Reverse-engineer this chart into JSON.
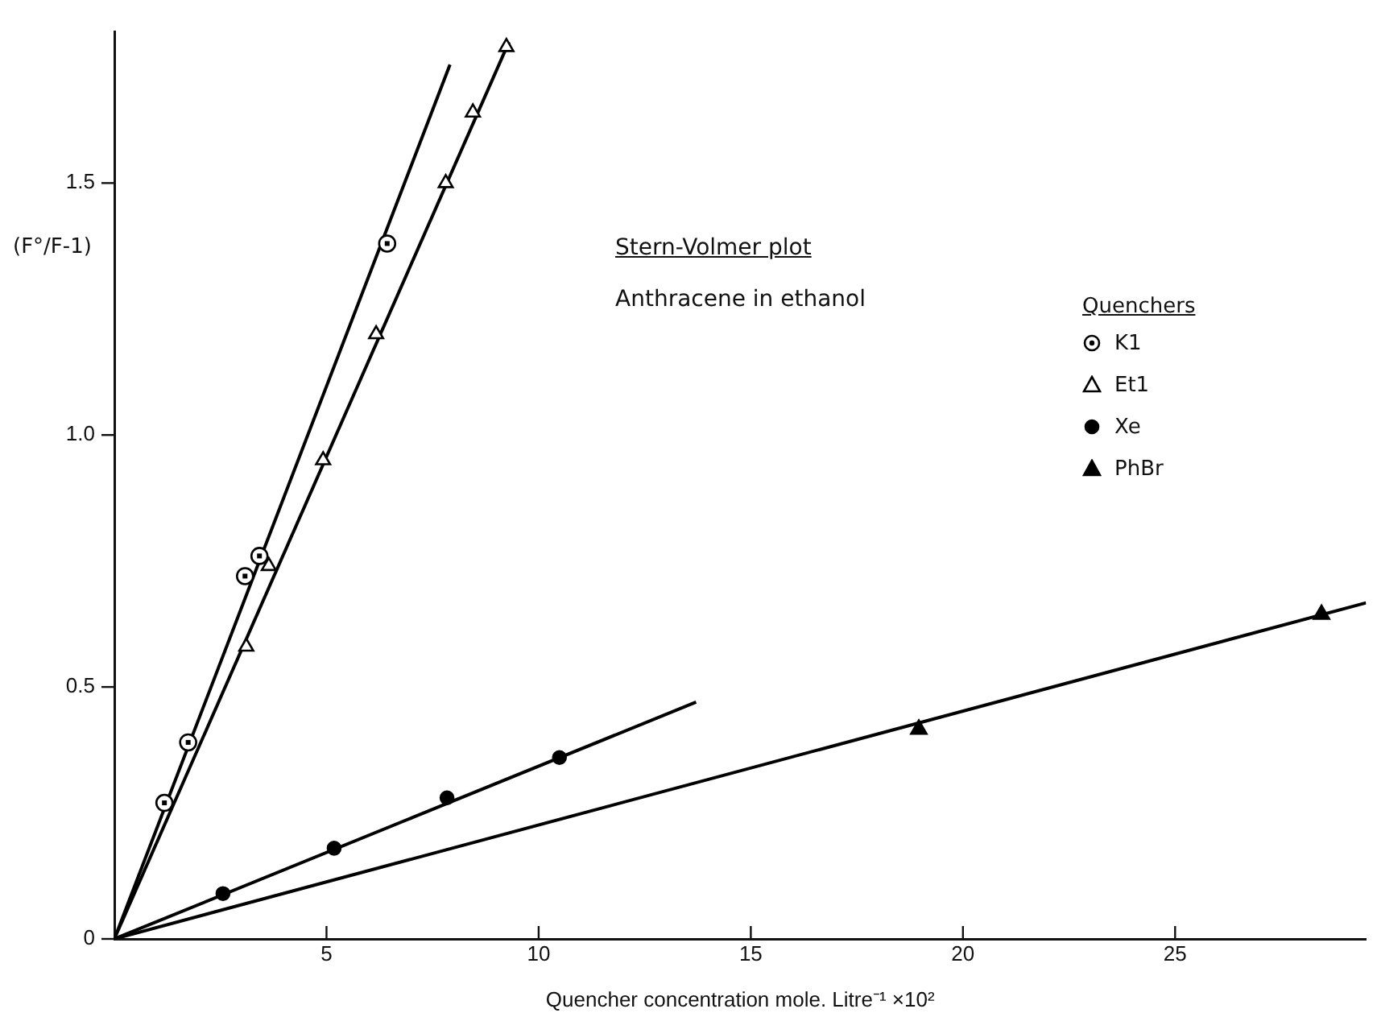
{
  "chart_data": {
    "type": "scatter",
    "title": "Stern-Volmer plot",
    "subtitle": "Anthracene in ethanol",
    "xlabel": "Quencher concentration mole. Litre⁻¹ ×10²",
    "ylabel": "(F°/F-1)",
    "legend_title": "Quenchers",
    "legend": "top right",
    "grid": false,
    "xlim": [
      0,
      29.5
    ],
    "xticks": [
      5,
      10,
      15,
      20,
      25
    ],
    "ylim": [
      0,
      1.8
    ],
    "yticks": [
      0,
      0.5,
      {
        "value": 1,
        "label": "1.0"
      },
      1.5
    ],
    "series": [
      {
        "name": "K1",
        "type": "scatter",
        "marker": "circle-dot",
        "color": "#000000",
        "x": [
          1.18,
          1.74,
          3.08,
          3.42,
          6.43
        ],
        "values": [
          0.27,
          0.39,
          0.72,
          0.76,
          1.38
        ]
      },
      {
        "name": "Et1",
        "type": "scatter",
        "marker": "triangle-open",
        "color": "#000000",
        "x": [
          3.11,
          3.64,
          4.92,
          6.17,
          7.81,
          8.45,
          9.24
        ],
        "values": [
          0.58,
          0.74,
          0.95,
          1.2,
          1.5,
          1.64,
          1.77
        ]
      },
      {
        "name": "Xe",
        "type": "scatter",
        "marker": "circle",
        "color": "#000000",
        "x": [
          2.56,
          5.18,
          7.84,
          10.49
        ],
        "values": [
          0.09,
          0.18,
          0.28,
          0.36
        ]
      },
      {
        "name": "PhBr",
        "type": "scatter",
        "marker": "triangle",
        "color": "#000000",
        "x": [
          18.96,
          28.45
        ],
        "values": [
          0.416,
          0.644
        ]
      },
      {
        "type": "line",
        "marker": "none",
        "line_style": "solid",
        "color": "#000000",
        "x": [
          0,
          7.91
        ],
        "values": [
          0,
          1.735
        ]
      },
      {
        "type": "line",
        "marker": "none",
        "line_style": "solid",
        "color": "#000000",
        "x": [
          0,
          9.3
        ],
        "values": [
          0,
          1.78
        ]
      },
      {
        "type": "line",
        "marker": "none",
        "line_style": "solid",
        "color": "#000000",
        "x": [
          0,
          13.71
        ],
        "values": [
          0,
          0.47
        ]
      },
      {
        "type": "line",
        "marker": "none",
        "line_style": "solid",
        "color": "#000000",
        "x": [
          0,
          29.5
        ],
        "values": [
          0,
          0.667
        ]
      }
    ]
  }
}
